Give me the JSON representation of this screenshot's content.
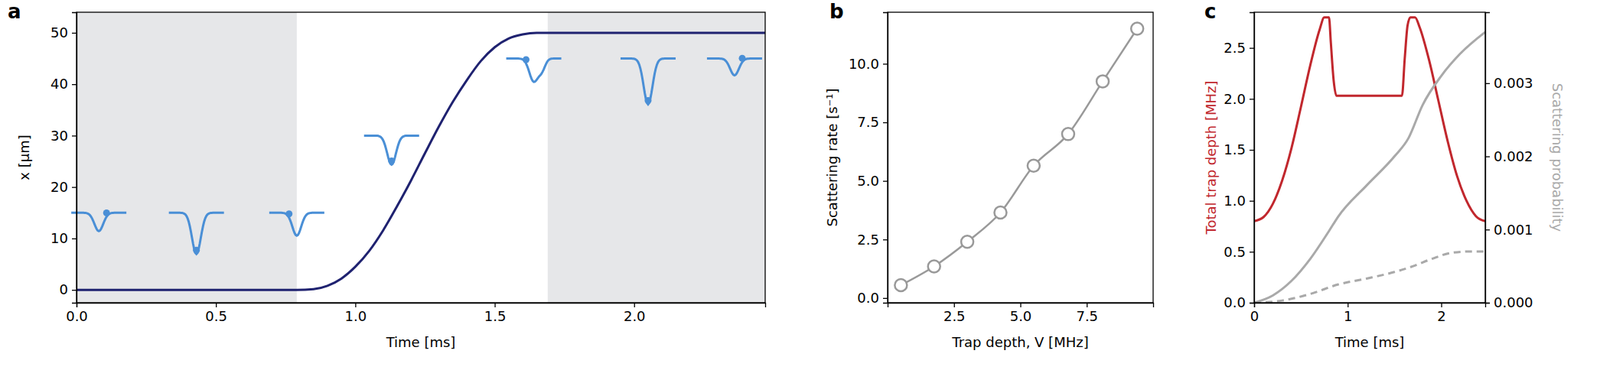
{
  "chart_data": [
    {
      "type": "line",
      "label": "a",
      "x_label": "Time [ms]",
      "y_label": "x [μm]",
      "xlim": [
        0,
        2.47
      ],
      "ylim": [
        -2.5,
        54
      ],
      "xticks": [
        {
          "value": 0,
          "label": "0.0"
        },
        {
          "value": 0.5,
          "label": "0.5"
        },
        {
          "value": 1,
          "label": "1.0"
        },
        {
          "value": 1.5,
          "label": "1.5"
        },
        {
          "value": 2,
          "label": "2.0"
        }
      ],
      "yticks": [
        0,
        10,
        20,
        30,
        40,
        50
      ],
      "shaded_spans": [
        [
          0,
          0.79
        ],
        [
          1.69,
          2.47
        ]
      ],
      "series": [
        {
          "color": "#1f2270",
          "line_style": "solid",
          "x": [
            0,
            0.79,
            0.85,
            0.9,
            0.95,
            1.0,
            1.05,
            1.1,
            1.15,
            1.2,
            1.25,
            1.3,
            1.35,
            1.4,
            1.45,
            1.5,
            1.55,
            1.6,
            1.65,
            1.69,
            2.47
          ],
          "values": [
            0,
            0,
            0.14,
            0.8,
            2.2,
            4.5,
            7.6,
            11.6,
            16.3,
            21.3,
            26.6,
            31.8,
            36.6,
            40.8,
            44.5,
            47.2,
            48.9,
            49.7,
            50,
            50,
            50
          ]
        }
      ]
    },
    {
      "type": "line",
      "label": "b",
      "x_label": "Trap depth, V [MHz]",
      "y_label": "Scattering rate [s⁻¹]",
      "xlim": [
        0,
        10
      ],
      "ylim": [
        -0.2,
        12.2
      ],
      "xticks": [
        2.5,
        {
          "value": 5,
          "label": "5.0"
        },
        7.5
      ],
      "yticks": [
        {
          "value": 0,
          "label": "0.0"
        },
        2.5,
        {
          "value": 5,
          "label": "5.0"
        },
        7.5,
        {
          "value": 10,
          "label": "10.0"
        }
      ],
      "series": [
        {
          "color": "#999999",
          "line_style": "solid",
          "marker": "circle",
          "x": [
            0.5,
            1.75,
            3.0,
            4.25,
            5.5,
            6.8,
            8.1,
            9.4
          ],
          "values": [
            0.55,
            1.35,
            2.4,
            3.65,
            5.65,
            7.0,
            9.25,
            11.5
          ]
        }
      ]
    },
    {
      "type": "line",
      "label": "c",
      "x_label": "Time [ms]",
      "y_label": "Total trap depth [MHz]",
      "y2_label": "Scattering probability",
      "xlim": [
        0,
        2.47
      ],
      "ylim": [
        0,
        2.85
      ],
      "y2lim": [
        0,
        0.00397
      ],
      "xticks": [
        0,
        1,
        2
      ],
      "yticks": [
        {
          "value": 0,
          "label": "0.0"
        },
        0.5,
        {
          "value": 1,
          "label": "1.0"
        },
        1.5,
        {
          "value": 2,
          "label": "2.0"
        },
        2.5
      ],
      "y2ticks": [
        {
          "value": 0,
          "label": "0.000"
        },
        {
          "value": 0.001,
          "label": "0.001"
        },
        {
          "value": 0.002,
          "label": "0.002"
        },
        {
          "value": 0.003,
          "label": "0.003"
        }
      ],
      "series": [
        {
          "color": "#c1272d",
          "line_style": "solid",
          "x": [
            0,
            0.1,
            0.2,
            0.3,
            0.4,
            0.5,
            0.6,
            0.7,
            0.75,
            0.8,
            0.82,
            0.85,
            0.88,
            1.58,
            1.61,
            1.64,
            1.67,
            1.72,
            1.77,
            1.87,
            1.97,
            2.07,
            2.17,
            2.27,
            2.37,
            2.47
          ],
          "values": [
            0.8,
            0.84,
            0.97,
            1.2,
            1.52,
            1.92,
            2.33,
            2.68,
            2.8,
            2.8,
            2.55,
            2.18,
            2.03,
            2.03,
            2.4,
            2.72,
            2.8,
            2.8,
            2.7,
            2.38,
            1.98,
            1.58,
            1.24,
            1.0,
            0.85,
            0.8
          ]
        },
        {
          "color": "#a9a9a9",
          "line_style": "solid",
          "axis": "y2",
          "x": [
            0,
            0.2,
            0.4,
            0.6,
            0.8,
            0.9,
            1.2,
            1.5,
            1.65,
            1.8,
            2.0,
            2.2,
            2.47
          ],
          "values": [
            0,
            0.0001,
            0.0003,
            0.0006,
            0.00098,
            0.00118,
            0.0016,
            0.002,
            0.00225,
            0.0027,
            0.0031,
            0.0034,
            0.0037
          ]
        },
        {
          "color": "#a9a9a9",
          "line_style": "dashed",
          "axis": "y2",
          "x": [
            0,
            0.3,
            0.6,
            0.9,
            1.2,
            1.5,
            1.7,
            1.9,
            2.1,
            2.3,
            2.47
          ],
          "values": [
            0,
            3e-05,
            0.00012,
            0.00025,
            0.00033,
            0.00042,
            0.0005,
            0.0006,
            0.00068,
            0.0007,
            0.0007
          ]
        }
      ]
    }
  ]
}
